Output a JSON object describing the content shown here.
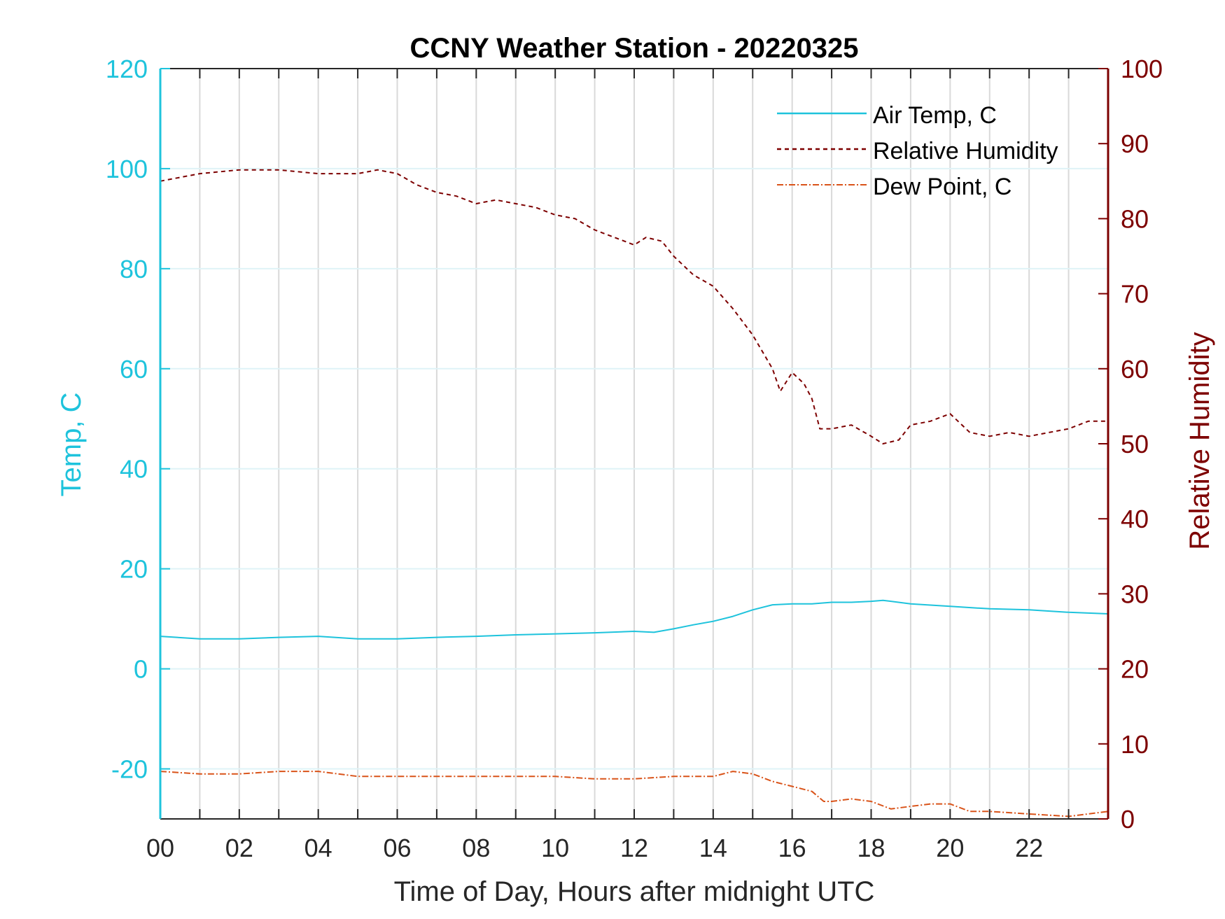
{
  "chart_data": {
    "type": "line",
    "title": "CCNY Weather Station - 20220325",
    "xlabel": "Time of Day, Hours after midnight UTC",
    "ylabel_left": "Temp, C",
    "ylabel_right": "Relative Humidity",
    "xlim": [
      0,
      24
    ],
    "ylim_left": [
      -30,
      120
    ],
    "ylim_right": [
      0,
      100
    ],
    "x_ticks": [
      "00",
      "02",
      "04",
      "06",
      "08",
      "10",
      "12",
      "14",
      "16",
      "18",
      "20",
      "22"
    ],
    "y_ticks_left": [
      "-20",
      "0",
      "20",
      "40",
      "60",
      "80",
      "100",
      "120"
    ],
    "y_ticks_right": [
      "0",
      "10",
      "20",
      "30",
      "40",
      "50",
      "60",
      "70",
      "80",
      "90",
      "100"
    ],
    "grid": true,
    "legend_position": "top-right",
    "colors": {
      "air_temp": "#1ec3dc",
      "humidity": "#7d0000",
      "dew_point": "#d95319",
      "left_axis": "#1ec3dc",
      "right_axis": "#7d0000"
    },
    "series": [
      {
        "name": "Air Temp, C",
        "axis": "left",
        "style": "solid",
        "x": [
          0,
          1,
          2,
          3,
          4,
          5,
          5.5,
          6,
          7,
          8,
          9,
          10,
          11,
          12,
          12.5,
          13,
          13.5,
          14,
          14.5,
          15,
          15.5,
          16,
          16.5,
          17,
          17.5,
          18,
          18.3,
          19,
          20,
          21,
          22,
          23,
          24
        ],
        "y": [
          6.5,
          6,
          6,
          6.3,
          6.5,
          6,
          6,
          6,
          6.3,
          6.5,
          6.8,
          7,
          7.2,
          7.5,
          7.3,
          8,
          8.8,
          9.5,
          10.5,
          11.8,
          12.8,
          13,
          13,
          13.3,
          13.3,
          13.5,
          13.7,
          13,
          12.5,
          12,
          11.8,
          11.3,
          11
        ]
      },
      {
        "name": "Relative Humidity",
        "axis": "right",
        "style": "dashed",
        "x": [
          0,
          1,
          2,
          3,
          4,
          5,
          5.5,
          6,
          6.5,
          7,
          7.5,
          8,
          8.5,
          9,
          9.5,
          10,
          10.5,
          11,
          11.5,
          12,
          12.3,
          12.7,
          13,
          13.5,
          14,
          14.5,
          15,
          15.5,
          15.7,
          16,
          16.3,
          16.5,
          16.7,
          17,
          17.5,
          18,
          18.3,
          18.7,
          19,
          19.5,
          20,
          20.5,
          21,
          21.5,
          22,
          22.5,
          23,
          23.5,
          24
        ],
        "y": [
          85,
          86,
          86.5,
          86.5,
          86,
          86,
          86.5,
          86,
          84.5,
          83.5,
          83,
          82,
          82.5,
          82,
          81.5,
          80.5,
          80,
          78.5,
          77.5,
          76.5,
          77.5,
          77,
          75,
          72.5,
          71,
          68,
          64.5,
          60,
          57,
          59.5,
          58,
          56,
          52,
          52,
          52.5,
          51,
          50,
          50.5,
          52.5,
          53,
          54,
          51.5,
          51,
          51.5,
          51,
          51.5,
          52,
          53,
          53
        ]
      },
      {
        "name": "Dew Point, C",
        "axis": "left",
        "style": "dashdot",
        "x": [
          0,
          1,
          2,
          3,
          4,
          5,
          6,
          7,
          8,
          9,
          10,
          11,
          12,
          13,
          14,
          14.5,
          15,
          15.5,
          16,
          16.5,
          16.8,
          17,
          17.5,
          18,
          18.5,
          19,
          19.5,
          20,
          20.5,
          21,
          22,
          23,
          24
        ],
        "y": [
          -20.5,
          -21,
          -21,
          -20.5,
          -20.5,
          -21.5,
          -21.5,
          -21.5,
          -21.5,
          -21.5,
          -21.5,
          -22,
          -22,
          -21.5,
          -21.5,
          -20.5,
          -21,
          -22.5,
          -23.5,
          -24.5,
          -26.5,
          -26.5,
          -26,
          -26.5,
          -28,
          -27.5,
          -27,
          -27,
          -28.5,
          -28.5,
          -29,
          -29.5,
          -28.5
        ]
      }
    ]
  }
}
